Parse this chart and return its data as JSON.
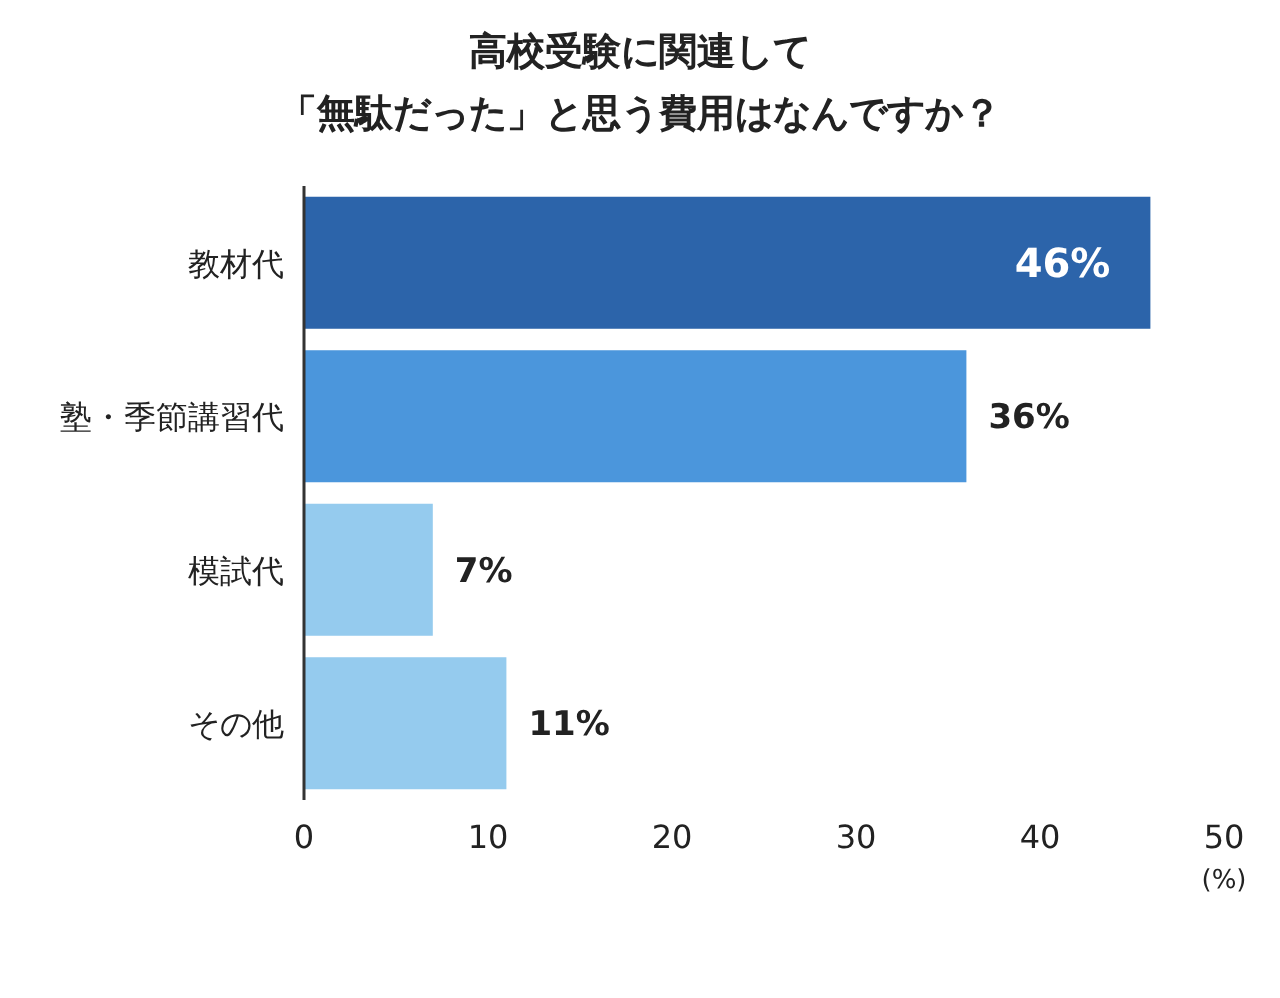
{
  "chart_data": {
    "type": "bar",
    "orientation": "horizontal",
    "title": "高校受験に関連して「無駄だった」と思う費用はなんですか？",
    "categories": [
      "教材代",
      "塾・季節講習代",
      "模試代",
      "その他"
    ],
    "values": [
      46,
      36,
      7,
      11
    ],
    "colors": [
      "#2c64aa",
      "#4b96dc",
      "#95cbee",
      "#95cbee"
    ],
    "value_labels": [
      "46%",
      "36%",
      "7%",
      "11%"
    ],
    "xlim": [
      0,
      50
    ],
    "xticks": [
      0,
      10,
      20,
      30,
      40,
      50
    ],
    "xlabel": "(%)"
  }
}
